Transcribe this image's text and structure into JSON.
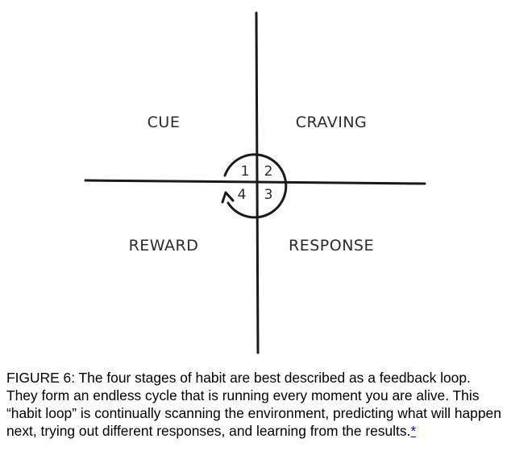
{
  "diagram": {
    "quadrants": {
      "top_left": "CUE",
      "top_right": "CRAVING",
      "bottom_left": "REWARD",
      "bottom_right": "RESPONSE"
    },
    "stages": {
      "one": "1",
      "two": "2",
      "three": "3",
      "four": "4"
    },
    "line_color": "#1a1a1a"
  },
  "caption": {
    "text": "FIGURE 6: The four stages of habit are best described as a feedback loop. They form an endless cycle that is running every moment you are alive. This “habit loop” is continually scanning the environment, predicting what will happen next, trying out different responses, and learning from the results.",
    "footnote_link": "*"
  }
}
